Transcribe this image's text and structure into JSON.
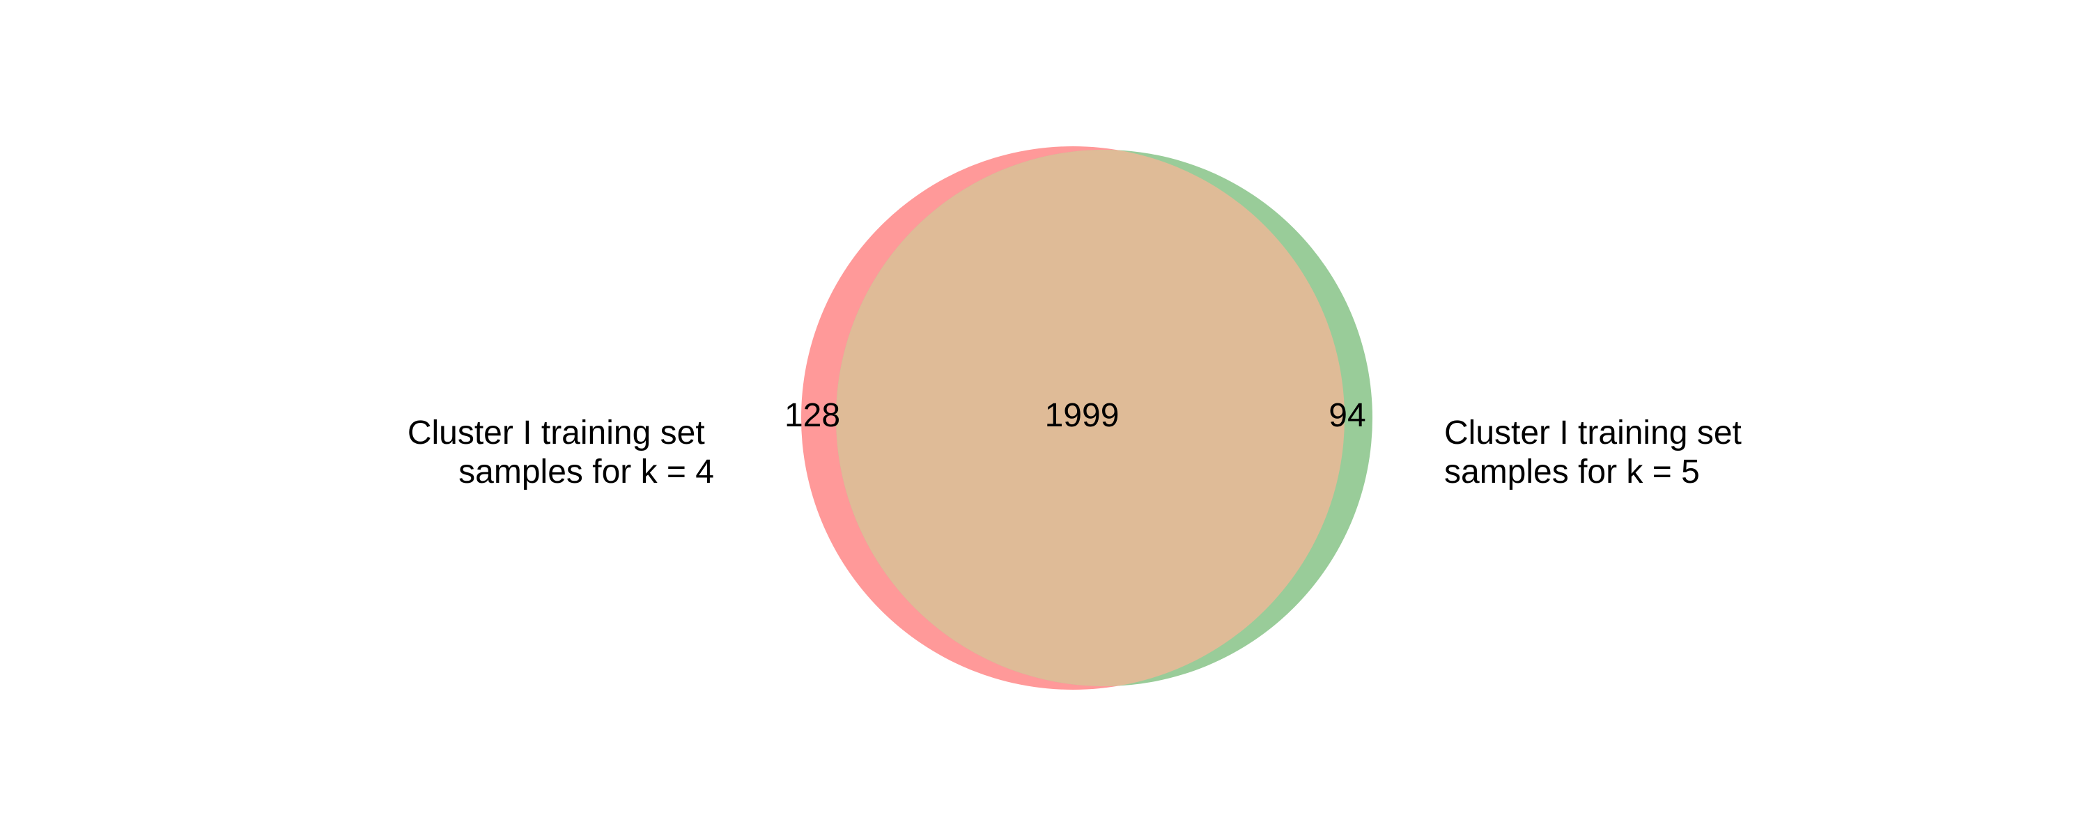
{
  "chart_data": {
    "type": "venn",
    "sets": [
      {
        "name_lines": [
          "Cluster I training set",
          "samples for k = 4"
        ],
        "color": "#ff9999"
      },
      {
        "name_lines": [
          "Cluster I training set",
          "samples for k = 5"
        ],
        "color": "#99cc99"
      }
    ],
    "regions": {
      "only_a": "128",
      "both": "1999",
      "only_b": "94"
    },
    "overlap_color": "#dfbb97"
  }
}
